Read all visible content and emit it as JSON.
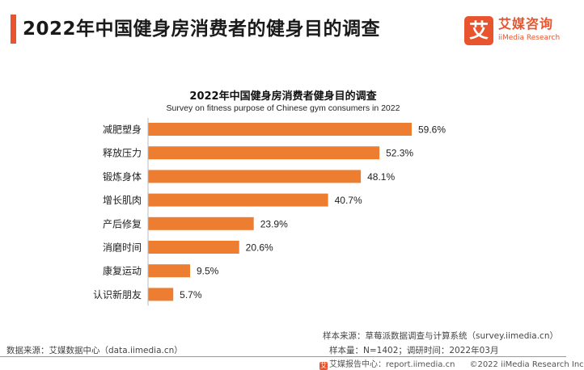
{
  "header": {
    "title": "2022年中国健身房消费者的健身目的调查"
  },
  "logo": {
    "mark": "艾",
    "name_cn": "艾媒咨询",
    "name_en": "iiMedia Research"
  },
  "chart_data": {
    "type": "bar",
    "orientation": "horizontal",
    "title": "2022年中国健身房消费者健身目的调查",
    "subtitle": "Survey on fitness purpose of Chinese gym consumers in 2022",
    "categories": [
      "减肥塑身",
      "释放压力",
      "锻炼身体",
      "增长肌肉",
      "产后修复",
      "消磨时间",
      "康复运动",
      "认识新朋友"
    ],
    "values": [
      59.6,
      52.3,
      48.1,
      40.7,
      23.9,
      20.6,
      9.5,
      5.7
    ],
    "value_labels": [
      "59.6%",
      "52.3%",
      "48.1%",
      "40.7%",
      "23.9%",
      "20.6%",
      "9.5%",
      "5.7%"
    ],
    "unit": "%",
    "bar_color": "#ed7d31",
    "grid": false,
    "legend": "none"
  },
  "footer": {
    "source": "数据来源：艾媒数据中心（data.iimedia.cn）",
    "sample_source": "样本来源：草莓派数据调查与计算系统（survey.iimedia.cn）",
    "sample_info": "样本量：N=1402；调研时间：2022年03月",
    "report_center": "艾媒报告中心：report.iimedia.cn",
    "copyright": "©2022  iiMedia Research  Inc"
  }
}
